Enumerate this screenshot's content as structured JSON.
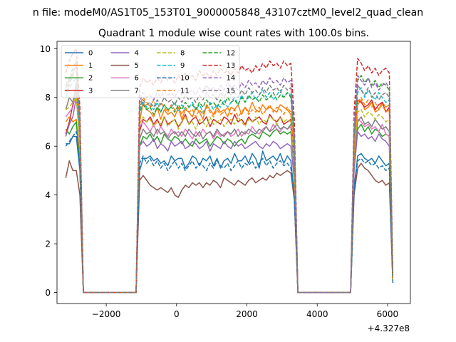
{
  "figure": {
    "suptitle": "n file: modeM0/AS1T05_153T01_9000005848_43107cztM0_level2_quad_clean",
    "title": "Quadrant 1 module wise count rates with 100.0s bins.",
    "x_offset_label": "+4.327e8"
  },
  "chart_data": {
    "type": "line",
    "title": "Quadrant 1 module wise count rates with 100.0s bins.",
    "xlabel": "",
    "ylabel": "",
    "xlim": [
      -3400,
      6650
    ],
    "ylim": [
      -0.45,
      10.3
    ],
    "x_offset": 432700000,
    "xticks": [
      -2000,
      0,
      2000,
      4000,
      6000
    ],
    "xtick_labels": [
      "−2000",
      "0",
      "2000",
      "4000",
      "6000"
    ],
    "yticks": [
      0,
      2,
      4,
      6,
      8,
      10
    ],
    "ytick_labels": [
      "0",
      "2",
      "4",
      "6",
      "8",
      "10"
    ],
    "grid": false,
    "legend": {
      "placement": "upper-left",
      "columns": 4
    },
    "x": [
      -3150,
      -3050,
      -2950,
      -2850,
      -2750,
      -2650,
      -2550,
      -1150,
      -1050,
      -950,
      -850,
      -750,
      -650,
      -550,
      -450,
      -350,
      -250,
      -150,
      -50,
      50,
      150,
      250,
      350,
      450,
      550,
      650,
      750,
      850,
      950,
      1050,
      1150,
      1250,
      1350,
      1450,
      1550,
      1650,
      1750,
      1850,
      1950,
      2050,
      2150,
      2250,
      2350,
      2450,
      2550,
      2650,
      2750,
      2850,
      2950,
      3050,
      3150,
      3250,
      3350,
      3450,
      4950,
      5050,
      5150,
      5250,
      5350,
      5450,
      5550,
      5650,
      5750,
      5850,
      5950,
      6050,
      6150
    ],
    "series": [
      {
        "name": "0",
        "color": "#1f77b4",
        "style": "solid",
        "values": [
          6.1,
          6.1,
          6.4,
          6.4,
          5.0,
          0,
          0,
          0,
          5.0,
          5.5,
          5.5,
          5.6,
          5.4,
          5.5,
          5.3,
          5.4,
          5.2,
          5.6,
          5.4,
          5.5,
          5.5,
          5.1,
          5.3,
          5.6,
          5.5,
          5.2,
          5.5,
          5.4,
          5.6,
          5.2,
          5.5,
          5.1,
          5.4,
          5.5,
          5.3,
          5.7,
          5.4,
          5.4,
          5.6,
          5.3,
          5.7,
          5.5,
          5.1,
          5.8,
          5.4,
          5.5,
          5.6,
          5.4,
          5.7,
          5.3,
          5.6,
          5.4,
          4.0,
          0,
          0,
          4.3,
          5.6,
          5.7,
          5.5,
          5.4,
          5.5,
          5.3,
          5.6,
          5.4,
          5.2,
          5.3,
          0.4
        ]
      },
      {
        "name": "1",
        "color": "#ff7f0e",
        "style": "solid",
        "values": [
          7.0,
          7.2,
          7.0,
          7.1,
          5.5,
          0,
          0,
          0,
          7.0,
          7.8,
          7.5,
          7.4,
          7.2,
          7.6,
          7.1,
          7.5,
          7.3,
          7.4,
          7.2,
          7.6,
          7.1,
          7.5,
          7.4,
          7.2,
          7.6,
          7.4,
          7.1,
          7.7,
          7.5,
          7.3,
          7.6,
          7.4,
          7.5,
          7.2,
          7.6,
          7.5,
          7.7,
          7.3,
          7.6,
          7.4,
          7.8,
          7.5,
          7.4,
          7.7,
          7.5,
          7.6,
          7.5,
          7.4,
          7.7,
          7.6,
          7.5,
          7.3,
          5.3,
          0,
          0,
          5.8,
          7.7,
          7.9,
          7.5,
          7.6,
          7.8,
          7.4,
          7.5,
          7.8,
          7.6,
          7.7,
          0.6
        ]
      },
      {
        "name": "2",
        "color": "#2ca02c",
        "style": "solid",
        "values": [
          6.7,
          6.5,
          6.8,
          7.0,
          5.2,
          0,
          0,
          0,
          6.0,
          6.4,
          6.3,
          6.5,
          6.2,
          6.4,
          6.1,
          6.5,
          6.3,
          6.2,
          6.4,
          6.3,
          6.1,
          6.3,
          6.1,
          6.0,
          6.3,
          6.1,
          6.2,
          6.3,
          6.0,
          6.2,
          6.4,
          6.3,
          6.1,
          6.3,
          6.2,
          6.0,
          6.2,
          6.3,
          6.1,
          6.4,
          6.5,
          6.4,
          6.3,
          6.6,
          6.5,
          6.4,
          6.6,
          6.7,
          6.5,
          6.6,
          6.5,
          6.6,
          5.0,
          0,
          0,
          5.1,
          6.7,
          6.9,
          6.6,
          6.8,
          6.5,
          6.7,
          6.6,
          6.4,
          6.5,
          6.4,
          0.6
        ]
      },
      {
        "name": "3",
        "color": "#d62728",
        "style": "solid",
        "values": [
          6.5,
          7.0,
          7.7,
          8.6,
          6.4,
          0,
          0,
          0,
          6.6,
          7.1,
          7.0,
          7.2,
          6.9,
          7.1,
          6.8,
          7.2,
          6.9,
          7.0,
          7.1,
          6.8,
          7.0,
          7.3,
          6.9,
          7.1,
          7.2,
          6.9,
          7.0,
          7.2,
          6.8,
          7.1,
          7.0,
          6.9,
          7.2,
          7.1,
          6.9,
          7.3,
          7.0,
          7.1,
          6.9,
          7.2,
          7.0,
          7.1,
          7.2,
          7.0,
          6.9,
          7.3,
          7.1,
          7.0,
          7.2,
          6.9,
          7.0,
          7.1,
          5.6,
          0,
          0,
          6.4,
          7.9,
          7.8,
          7.6,
          7.7,
          7.9,
          7.5,
          7.7,
          7.8,
          7.4,
          7.6,
          0.6
        ]
      },
      {
        "name": "4",
        "color": "#9467bd",
        "style": "solid",
        "values": [
          6.4,
          6.9,
          7.2,
          8.0,
          6.2,
          0,
          0,
          0,
          6.0,
          6.2,
          6.0,
          6.1,
          6.3,
          5.9,
          6.1,
          6.0,
          5.8,
          6.2,
          6.0,
          6.1,
          6.2,
          5.9,
          6.0,
          6.2,
          6.1,
          5.9,
          6.0,
          6.2,
          5.8,
          6.1,
          6.0,
          5.9,
          6.2,
          6.0,
          5.9,
          6.2,
          6.0,
          6.1,
          5.9,
          6.0,
          6.1,
          6.2,
          6.0,
          5.9,
          6.1,
          6.0,
          6.2,
          6.1,
          5.9,
          6.0,
          6.1,
          6.0,
          4.6,
          0,
          0,
          5.0,
          6.6,
          6.4,
          6.5,
          6.3,
          6.4,
          6.2,
          6.5,
          6.3,
          6.2,
          6.0,
          0.5
        ]
      },
      {
        "name": "5",
        "color": "#8c564b",
        "style": "solid",
        "values": [
          4.7,
          5.4,
          5.0,
          5.0,
          4.0,
          0,
          0,
          0,
          4.6,
          4.8,
          4.6,
          4.4,
          4.3,
          4.2,
          4.3,
          4.2,
          4.1,
          4.3,
          4.0,
          3.9,
          4.2,
          4.4,
          4.3,
          4.5,
          4.4,
          4.5,
          4.3,
          4.5,
          4.4,
          4.6,
          4.5,
          4.3,
          4.7,
          4.6,
          4.5,
          4.4,
          4.6,
          4.5,
          4.4,
          4.6,
          4.7,
          4.5,
          4.6,
          4.7,
          4.6,
          4.8,
          4.7,
          4.9,
          4.8,
          4.9,
          5.0,
          4.9,
          3.8,
          0,
          0,
          4.0,
          5.1,
          5.3,
          5.1,
          5.0,
          4.8,
          4.6,
          4.5,
          4.6,
          4.4,
          4.5,
          0.4
        ]
      },
      {
        "name": "6",
        "color": "#e377c2",
        "style": "solid",
        "values": [
          7.2,
          7.4,
          7.6,
          8.2,
          6.0,
          0,
          0,
          0,
          6.8,
          7.0,
          6.8,
          6.6,
          6.9,
          6.5,
          6.8,
          6.6,
          6.4,
          6.7,
          6.5,
          6.6,
          6.4,
          6.7,
          6.5,
          6.3,
          6.6,
          6.4,
          6.7,
          6.5,
          6.6,
          6.3,
          6.6,
          6.4,
          6.5,
          6.6,
          6.4,
          6.5,
          6.7,
          6.4,
          6.6,
          6.5,
          6.8,
          6.6,
          6.5,
          6.7,
          6.8,
          6.6,
          6.9,
          6.7,
          6.6,
          6.8,
          6.7,
          6.8,
          5.1,
          0,
          0,
          5.5,
          7.1,
          7.0,
          6.8,
          6.9,
          6.7,
          6.8,
          6.6,
          6.9,
          6.5,
          6.4,
          0.5
        ]
      },
      {
        "name": "7",
        "color": "#7f7f7f",
        "style": "solid",
        "values": [
          7.5,
          8.0,
          7.8,
          8.4,
          6.3,
          0,
          0,
          0,
          6.3,
          6.7,
          6.5,
          6.6,
          6.4,
          6.7,
          6.5,
          6.6,
          6.3,
          6.5,
          6.6,
          6.4,
          6.6,
          6.4,
          6.7,
          6.5,
          6.4,
          6.6,
          6.3,
          6.5,
          6.6,
          6.4,
          6.7,
          6.5,
          6.4,
          6.6,
          6.5,
          6.7,
          6.4,
          6.6,
          6.5,
          6.7,
          6.6,
          6.5,
          6.7,
          6.6,
          6.8,
          6.6,
          6.7,
          6.9,
          6.7,
          6.8,
          6.7,
          6.9,
          5.2,
          0,
          0,
          5.4,
          7.0,
          7.2,
          6.9,
          7.0,
          6.8,
          7.1,
          6.9,
          6.7,
          6.8,
          6.6,
          0.5
        ]
      },
      {
        "name": "8",
        "color": "#bcbd22",
        "style": "dashed",
        "values": [
          7.5,
          7.6,
          7.8,
          8.0,
          6.0,
          0,
          0,
          0,
          6.9,
          7.2,
          7.0,
          7.1,
          6.8,
          7.0,
          6.9,
          7.2,
          6.8,
          7.0,
          7.1,
          6.7,
          7.0,
          7.2,
          6.9,
          7.0,
          6.7,
          7.1,
          7.0,
          6.8,
          7.2,
          6.9,
          7.0,
          7.1,
          6.8,
          7.0,
          7.1,
          6.9,
          7.2,
          7.0,
          6.8,
          7.1,
          7.0,
          7.2,
          6.9,
          7.1,
          7.0,
          7.2,
          7.1,
          6.9,
          7.2,
          7.0,
          7.1,
          7.0,
          5.4,
          0,
          0,
          5.7,
          7.4,
          7.5,
          7.2,
          7.4,
          7.3,
          7.1,
          7.3,
          7.2,
          7.0,
          7.1,
          0.5
        ]
      },
      {
        "name": "9",
        "color": "#17becf",
        "style": "dashed",
        "values": [
          8.0,
          8.4,
          8.6,
          8.8,
          6.7,
          0,
          0,
          0,
          7.5,
          7.8,
          7.6,
          7.7,
          7.5,
          7.8,
          7.4,
          7.7,
          7.5,
          7.6,
          7.8,
          7.4,
          7.7,
          7.5,
          7.6,
          7.8,
          7.5,
          7.7,
          7.4,
          7.6,
          7.8,
          7.5,
          7.7,
          7.6,
          7.9,
          7.6,
          7.8,
          8.0,
          7.7,
          8.1,
          7.8,
          8.0,
          8.2,
          7.9,
          8.1,
          8.3,
          8.0,
          8.2,
          7.9,
          8.1,
          8.3,
          8.0,
          8.2,
          8.1,
          6.2,
          0,
          0,
          6.5,
          8.2,
          8.4,
          8.0,
          8.3,
          8.1,
          7.9,
          8.2,
          8.0,
          7.8,
          7.9,
          0.6
        ]
      },
      {
        "name": "10",
        "color": "#1f77b4",
        "style": "dashed",
        "values": [
          6.0,
          6.2,
          6.4,
          6.6,
          5.2,
          0,
          0,
          0,
          5.3,
          5.6,
          5.3,
          5.5,
          5.2,
          5.4,
          5.1,
          5.3,
          5.0,
          5.2,
          5.4,
          5.1,
          5.3,
          5.0,
          5.2,
          5.4,
          5.1,
          5.3,
          5.2,
          5.0,
          5.3,
          5.1,
          5.4,
          5.2,
          5.1,
          5.3,
          5.0,
          5.2,
          5.4,
          5.1,
          5.3,
          5.2,
          5.4,
          5.1,
          5.3,
          5.5,
          5.2,
          5.4,
          5.1,
          5.3,
          5.4,
          5.2,
          5.3,
          5.1,
          3.9,
          0,
          0,
          4.2,
          5.4,
          5.5,
          5.3,
          5.4,
          5.2,
          5.3,
          5.1,
          5.2,
          5.0,
          5.1,
          0.4
        ]
      },
      {
        "name": "11",
        "color": "#ff7f0e",
        "style": "dashed",
        "values": [
          8.2,
          8.5,
          8.9,
          9.1,
          7.0,
          0,
          0,
          0,
          7.7,
          8.0,
          7.8,
          7.6,
          7.9,
          7.5,
          7.8,
          7.6,
          7.4,
          7.7,
          7.5,
          7.6,
          7.3,
          7.6,
          7.4,
          7.5,
          7.2,
          7.5,
          7.3,
          7.6,
          7.4,
          7.2,
          7.5,
          7.3,
          7.4,
          7.6,
          7.3,
          7.5,
          7.2,
          7.4,
          7.6,
          7.3,
          7.5,
          7.4,
          7.6,
          7.3,
          7.5,
          7.7,
          7.4,
          7.6,
          7.5,
          7.3,
          7.6,
          7.4,
          5.7,
          0,
          0,
          5.9,
          7.8,
          8.0,
          7.7,
          7.9,
          7.6,
          7.8,
          7.5,
          7.7,
          7.4,
          7.5,
          0.6
        ]
      },
      {
        "name": "12",
        "color": "#2ca02c",
        "style": "dashed",
        "values": [
          8.4,
          8.7,
          9.2,
          9.5,
          7.2,
          0,
          0,
          0,
          7.4,
          7.7,
          7.5,
          7.6,
          7.3,
          7.6,
          7.4,
          7.7,
          7.5,
          7.6,
          7.4,
          7.7,
          7.5,
          7.8,
          7.6,
          7.7,
          7.5,
          7.8,
          7.6,
          7.9,
          7.7,
          7.8,
          7.6,
          7.9,
          7.7,
          8.0,
          7.8,
          7.9,
          7.7,
          8.0,
          7.8,
          8.1,
          7.9,
          8.0,
          7.8,
          8.1,
          7.9,
          8.0,
          8.2,
          7.9,
          8.1,
          8.0,
          8.2,
          8.0,
          6.1,
          0,
          0,
          6.7,
          8.7,
          8.9,
          8.6,
          8.8,
          8.5,
          8.7,
          8.4,
          8.6,
          8.5,
          8.3,
          0.7
        ]
      },
      {
        "name": "13",
        "color": "#d62728",
        "style": "dashed",
        "values": [
          9.0,
          9.5,
          9.8,
          10.0,
          7.6,
          0,
          0,
          0,
          8.4,
          8.8,
          8.6,
          8.7,
          8.5,
          8.8,
          8.6,
          8.9,
          8.7,
          8.8,
          8.6,
          8.9,
          8.7,
          9.0,
          8.8,
          8.9,
          8.7,
          9.1,
          8.9,
          9.0,
          8.8,
          9.1,
          8.9,
          9.2,
          9.0,
          9.1,
          8.9,
          9.2,
          9.0,
          9.3,
          9.1,
          9.2,
          9.0,
          9.3,
          9.1,
          9.4,
          9.2,
          9.5,
          9.3,
          9.4,
          9.2,
          9.5,
          9.3,
          9.4,
          7.1,
          0,
          0,
          7.4,
          9.6,
          9.4,
          9.1,
          9.3,
          9.0,
          9.2,
          8.9,
          9.1,
          9.2,
          9.0,
          0.8
        ]
      },
      {
        "name": "14",
        "color": "#9467bd",
        "style": "dashed",
        "values": [
          8.2,
          8.6,
          9.0,
          9.4,
          7.1,
          0,
          0,
          0,
          7.8,
          8.2,
          8.0,
          8.1,
          7.9,
          8.2,
          8.0,
          8.3,
          8.1,
          8.2,
          8.0,
          8.3,
          8.1,
          8.4,
          8.2,
          8.3,
          8.1,
          8.4,
          8.2,
          8.5,
          8.3,
          8.4,
          8.2,
          8.5,
          8.3,
          8.6,
          8.4,
          8.5,
          8.3,
          8.6,
          8.4,
          8.7,
          8.5,
          8.6,
          8.4,
          8.7,
          8.5,
          8.8,
          8.6,
          8.7,
          8.5,
          8.8,
          8.6,
          8.7,
          6.6,
          0,
          0,
          6.9,
          8.9,
          8.7,
          8.5,
          8.8,
          8.4,
          8.6,
          8.3,
          8.5,
          8.6,
          8.4,
          0.7
        ]
      },
      {
        "name": "15",
        "color": "#7f7f7f",
        "style": "dashed",
        "values": [
          8.5,
          8.8,
          9.0,
          9.3,
          7.0,
          0,
          0,
          0,
          7.6,
          7.9,
          7.7,
          7.8,
          7.6,
          7.9,
          7.7,
          8.0,
          7.8,
          7.9,
          7.7,
          8.0,
          7.8,
          8.1,
          7.9,
          8.0,
          7.8,
          8.1,
          7.9,
          8.2,
          8.0,
          8.1,
          7.9,
          8.2,
          8.0,
          8.3,
          8.1,
          8.2,
          8.0,
          8.3,
          8.1,
          8.4,
          8.2,
          8.3,
          8.1,
          8.4,
          8.2,
          8.5,
          8.3,
          8.4,
          8.2,
          8.5,
          8.3,
          8.4,
          6.4,
          0,
          0,
          6.6,
          8.5,
          8.3,
          8.1,
          8.4,
          8.0,
          8.2,
          7.9,
          8.1,
          8.2,
          8.0,
          0.7
        ]
      }
    ]
  }
}
